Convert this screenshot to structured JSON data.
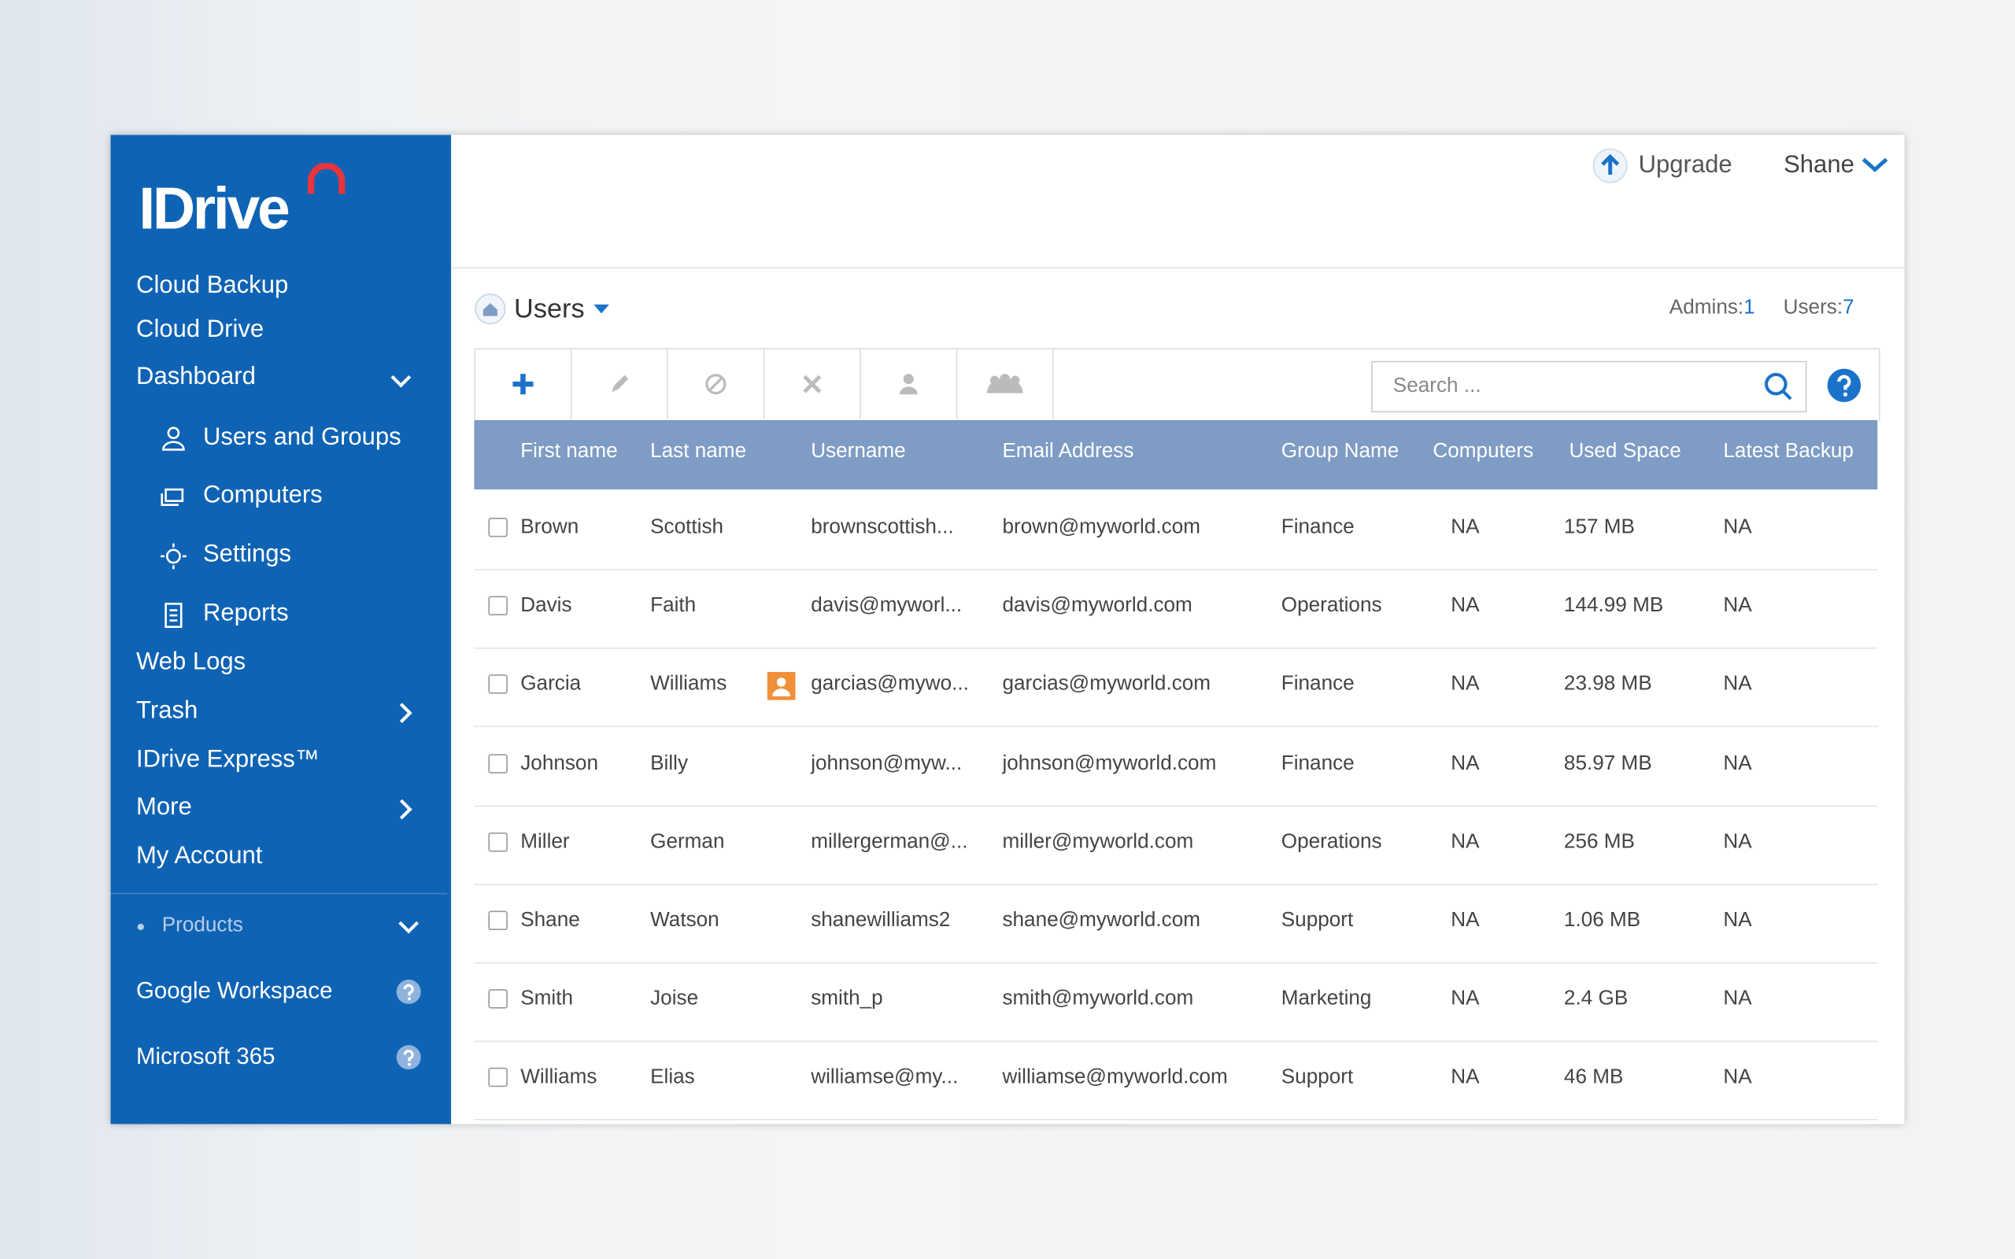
{
  "sidebar": {
    "logo": "IDrive",
    "nav": [
      "Cloud Backup",
      "Cloud Drive",
      "Dashboard"
    ],
    "dashboard_items": [
      "Users and Groups",
      "Computers",
      "Settings",
      "Reports"
    ],
    "nav_lower": [
      "Web Logs",
      "Trash",
      "IDrive Express™",
      "More",
      "My Account"
    ],
    "products_label": "Products",
    "products": [
      "Google Workspace",
      "Microsoft 365"
    ]
  },
  "header": {
    "upgrade": "Upgrade",
    "user": "Shane"
  },
  "page": {
    "title": "Users",
    "admins_label": "Admins:",
    "admins": 1,
    "users_label": "Users:",
    "users": 7,
    "search_placeholder": "Search ..."
  },
  "table": {
    "columns": [
      "First name",
      "Last name",
      "Username",
      "Email Address",
      "Group Name",
      "Computers",
      "Used Space",
      "Latest Backup"
    ],
    "rows": [
      [
        "Brown",
        "Scottish",
        "brownscottish...",
        "brown@myworld.com",
        "Finance",
        "NA",
        "157 MB",
        "NA"
      ],
      [
        "Davis",
        "Faith",
        "davis@myworl...",
        "davis@myworld.com",
        "Operations",
        "NA",
        "144.99 MB",
        "NA"
      ],
      [
        "Garcia",
        "Williams",
        "garcias@mywo...",
        "garcias@myworld.com",
        "Finance",
        "NA",
        "23.98 MB",
        "NA"
      ],
      [
        "Johnson",
        "Billy",
        "johnson@myw...",
        "johnson@myworld.com",
        "Finance",
        "NA",
        "85.97 MB",
        "NA"
      ],
      [
        "Miller",
        "German",
        "millergerman@...",
        "miller@myworld.com",
        "Operations",
        "NA",
        "256 MB",
        "NA"
      ],
      [
        "Shane",
        "Watson",
        "shanewilliams2",
        "shane@myworld.com",
        "Support",
        "NA",
        "1.06 MB",
        "NA"
      ],
      [
        "Smith",
        "Joise",
        "smith_p",
        "smith@myworld.com",
        "Marketing",
        "NA",
        "2.4 GB",
        "NA"
      ],
      [
        "Williams",
        "Elias",
        "williamse@my...",
        "williamse@myworld.com",
        "Support",
        "NA",
        "46 MB",
        "NA"
      ]
    ]
  }
}
